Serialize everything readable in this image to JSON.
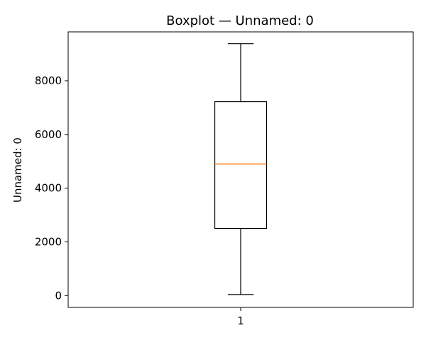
{
  "chart_data": {
    "type": "boxplot",
    "title": "Boxplot — Unnamed: 0",
    "xlabel": "",
    "ylabel": "Unnamed: 0",
    "categories": [
      "1"
    ],
    "boxes": [
      {
        "category": "1",
        "whisker_low": 40,
        "q1": 2500,
        "median": 4900,
        "q3": 7220,
        "whisker_high": 9380
      }
    ],
    "yticks": [
      0,
      2000,
      4000,
      6000,
      8000
    ],
    "ylim": [
      -440,
      9820
    ],
    "grid": false,
    "colors": {
      "box": "#000000",
      "median": "#ff7f0e",
      "axes": "#000000"
    }
  }
}
